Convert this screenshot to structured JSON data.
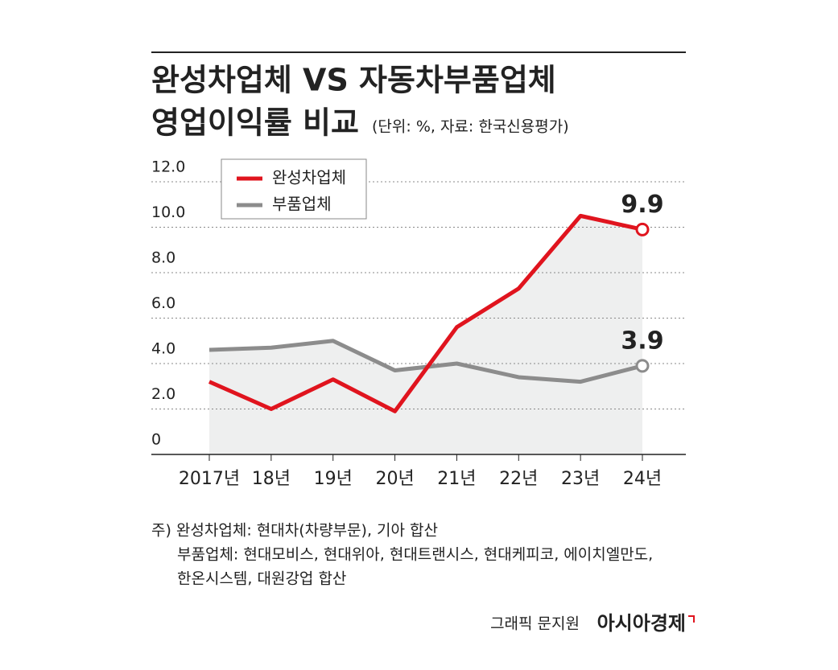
{
  "chart_data": {
    "type": "line",
    "title_lines": [
      "완성차업체 VS 자동차부품업체",
      "영업이익률 비교"
    ],
    "subtitle": "(단위: %, 자료: 한국신용평가)",
    "categories": [
      "2017년",
      "18년",
      "19년",
      "20년",
      "21년",
      "22년",
      "23년",
      "24년"
    ],
    "series": [
      {
        "name": "완성차업체",
        "color": "#e0141e",
        "values": [
          3.2,
          2.0,
          3.3,
          1.9,
          5.6,
          7.3,
          10.5,
          9.9
        ]
      },
      {
        "name": "부품업체",
        "color": "#8c8c8c",
        "values": [
          4.6,
          4.7,
          5.0,
          3.7,
          4.0,
          3.4,
          3.2,
          3.9
        ]
      }
    ],
    "ylim": [
      0,
      12
    ],
    "yticks": [
      0,
      {
        "value": 2,
        "label": "2.0"
      },
      {
        "value": 4,
        "label": "4.0"
      },
      {
        "value": 6,
        "label": "6.0"
      },
      {
        "value": 8,
        "label": "8.0"
      },
      {
        "value": 10,
        "label": "10.0"
      },
      {
        "value": 12,
        "label": "12.0"
      }
    ],
    "grid": true,
    "legend": "top-left",
    "area_color": "#eeefef",
    "footnotes": [
      "주) 완성차업체: 현대차(차량부문), 기아 합산",
      "부품업체: 현대모비스, 현대위아, 현대트랜시스, 현대케피코, 에이치엘만도,",
      "한온시스템, 대원강업 합산"
    ],
    "credit": "그래픽 문지원",
    "logo": "아시아경제"
  }
}
